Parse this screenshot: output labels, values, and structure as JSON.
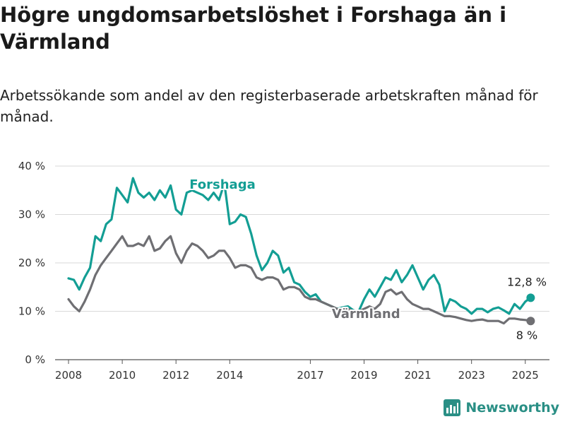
{
  "header": {
    "title": "Högre ungdomsarbetslöshet i Forshaga än i Värmland",
    "subtitle": "Arbetssökande som andel av den registerbaserade arbetskraften månad för månad."
  },
  "brand": {
    "name": "Newsworthy",
    "color": "#2a8f85"
  },
  "chart_data": {
    "type": "line",
    "title": "Högre ungdomsarbetslöshet i Forshaga än i Värmland",
    "subtitle": "Arbetssökande som andel av den registerbaserade arbetskraften månad för månad.",
    "xlabel": "",
    "ylabel": "",
    "xlim": [
      2007.5,
      2025.9
    ],
    "ylim": [
      0,
      40
    ],
    "y_ticks": [
      0,
      10,
      20,
      30,
      40
    ],
    "y_tick_labels": [
      "0 %",
      "10 %",
      "20 %",
      "30 %",
      "40 %"
    ],
    "x_ticks": [
      2008,
      2010,
      2012,
      2014,
      2017,
      2019,
      2021,
      2023,
      2025
    ],
    "x_tick_labels": [
      "2008",
      "2010",
      "2012",
      "2014",
      "2017",
      "2019",
      "2021",
      "2023",
      "2025"
    ],
    "grid": "horizontal",
    "legend": "inline labels",
    "series": [
      {
        "name": "Forshaga",
        "color": "#139e94",
        "end_value_label": "12,8 %",
        "x": [
          2008.0,
          2008.2,
          2008.4,
          2008.6,
          2008.8,
          2009.0,
          2009.2,
          2009.4,
          2009.6,
          2009.8,
          2010.0,
          2010.2,
          2010.4,
          2010.6,
          2010.8,
          2011.0,
          2011.2,
          2011.4,
          2011.6,
          2011.8,
          2012.0,
          2012.2,
          2012.4,
          2012.6,
          2012.8,
          2013.0,
          2013.2,
          2013.4,
          2013.6,
          2013.8,
          2014.0,
          2014.2,
          2014.4,
          2014.6,
          2014.8,
          2015.0,
          2015.2,
          2015.4,
          2015.6,
          2015.8,
          2016.0,
          2016.2,
          2016.4,
          2016.6,
          2016.8,
          2017.0,
          2017.2,
          2017.4,
          2017.6,
          2017.8,
          2018.0,
          2018.2,
          2018.4,
          2018.6,
          2018.8,
          2019.0,
          2019.2,
          2019.4,
          2019.6,
          2019.8,
          2020.0,
          2020.2,
          2020.4,
          2020.6,
          2020.8,
          2021.0,
          2021.2,
          2021.4,
          2021.6,
          2021.8,
          2022.0,
          2022.2,
          2022.4,
          2022.6,
          2022.8,
          2023.0,
          2023.2,
          2023.4,
          2023.6,
          2023.8,
          2024.0,
          2024.2,
          2024.4,
          2024.6,
          2024.8,
          2025.0,
          2025.2
        ],
        "values": [
          16.8,
          16.5,
          14.5,
          17.0,
          19.0,
          25.5,
          24.5,
          28.0,
          29.0,
          35.5,
          34.0,
          32.5,
          37.5,
          34.5,
          33.5,
          34.5,
          33.0,
          35.0,
          33.5,
          36.0,
          31.0,
          30.0,
          34.5,
          35.0,
          34.5,
          34.0,
          33.0,
          34.5,
          33.0,
          36.5,
          28.0,
          28.5,
          30.0,
          29.5,
          26.0,
          21.5,
          18.5,
          20.0,
          22.5,
          21.5,
          18.0,
          19.0,
          16.0,
          15.5,
          14.0,
          13.0,
          13.5,
          12.0,
          11.5,
          11.0,
          10.5,
          10.8,
          11.0,
          10.2,
          10.0,
          12.5,
          14.5,
          13.0,
          15.0,
          17.0,
          16.5,
          18.5,
          16.0,
          17.5,
          19.5,
          17.0,
          14.5,
          16.5,
          17.5,
          15.5,
          10.0,
          12.5,
          12.0,
          11.0,
          10.5,
          9.5,
          10.5,
          10.5,
          9.8,
          10.5,
          10.8,
          10.2,
          9.5,
          11.5,
          10.5,
          12.0,
          12.8
        ]
      },
      {
        "name": "Värmland",
        "color": "#6f6f73",
        "end_value_label": "8 %",
        "x": [
          2008.0,
          2008.2,
          2008.4,
          2008.6,
          2008.8,
          2009.0,
          2009.2,
          2009.4,
          2009.6,
          2009.8,
          2010.0,
          2010.2,
          2010.4,
          2010.6,
          2010.8,
          2011.0,
          2011.2,
          2011.4,
          2011.6,
          2011.8,
          2012.0,
          2012.2,
          2012.4,
          2012.6,
          2012.8,
          2013.0,
          2013.2,
          2013.4,
          2013.6,
          2013.8,
          2014.0,
          2014.2,
          2014.4,
          2014.6,
          2014.8,
          2015.0,
          2015.2,
          2015.4,
          2015.6,
          2015.8,
          2016.0,
          2016.2,
          2016.4,
          2016.6,
          2016.8,
          2017.0,
          2017.2,
          2017.4,
          2017.6,
          2017.8,
          2018.0,
          2018.2,
          2018.4,
          2018.6,
          2018.8,
          2019.0,
          2019.2,
          2019.4,
          2019.6,
          2019.8,
          2020.0,
          2020.2,
          2020.4,
          2020.6,
          2020.8,
          2021.0,
          2021.2,
          2021.4,
          2021.6,
          2021.8,
          2022.0,
          2022.2,
          2022.4,
          2022.6,
          2022.8,
          2023.0,
          2023.2,
          2023.4,
          2023.6,
          2023.8,
          2024.0,
          2024.2,
          2024.4,
          2024.6,
          2024.8,
          2025.0,
          2025.2
        ],
        "values": [
          12.5,
          11.0,
          10.0,
          12.0,
          14.5,
          17.5,
          19.5,
          21.0,
          22.5,
          24.0,
          25.5,
          23.5,
          23.5,
          24.0,
          23.5,
          25.5,
          22.5,
          23.0,
          24.5,
          25.5,
          22.0,
          20.0,
          22.5,
          24.0,
          23.5,
          22.5,
          21.0,
          21.5,
          22.5,
          22.5,
          21.0,
          19.0,
          19.5,
          19.5,
          19.0,
          17.0,
          16.5,
          17.0,
          17.0,
          16.5,
          14.5,
          15.0,
          15.0,
          14.5,
          13.0,
          12.5,
          12.5,
          12.0,
          11.5,
          11.0,
          10.5,
          10.5,
          10.5,
          10.0,
          10.0,
          10.5,
          11.0,
          10.5,
          11.5,
          14.0,
          14.5,
          13.5,
          14.0,
          12.5,
          11.5,
          11.0,
          10.5,
          10.5,
          10.0,
          9.5,
          9.0,
          9.0,
          8.8,
          8.5,
          8.2,
          8.0,
          8.2,
          8.3,
          8.0,
          8.0,
          8.0,
          7.5,
          8.5,
          8.5,
          8.3,
          8.2,
          8.0
        ]
      }
    ]
  }
}
